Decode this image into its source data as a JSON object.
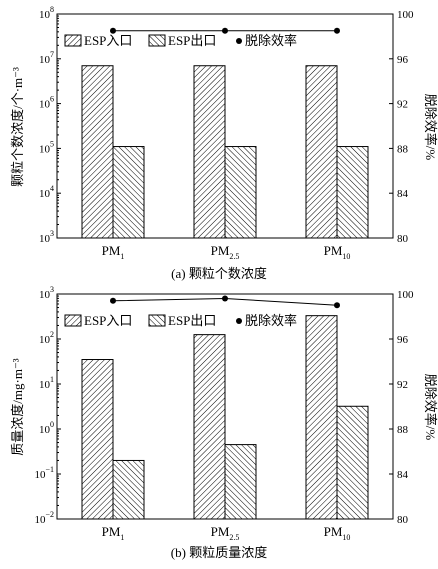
{
  "chart_data": [
    {
      "type": "bar",
      "caption": "(a) 颗粒个数浓度",
      "ylabel_left": "颗粒个数浓度/个·m⁻³",
      "ylabel_right": "脱除效率/%",
      "yscale_left": "log",
      "ylim_left_exp": [
        3,
        8
      ],
      "ylim_right": [
        80,
        100
      ],
      "yticks_right": [
        80,
        84,
        88,
        92,
        96,
        100
      ],
      "categories": [
        {
          "base": "PM",
          "sub": "1"
        },
        {
          "base": "PM",
          "sub": "2.5"
        },
        {
          "base": "PM",
          "sub": "10"
        }
      ],
      "series": [
        {
          "name": "ESP入口",
          "kind": "bar",
          "axis": "left",
          "values": [
            7000000.0,
            7000000.0,
            7000000.0
          ]
        },
        {
          "name": "ESP出口",
          "kind": "bar",
          "axis": "left",
          "values": [
            110000.0,
            110000.0,
            110000.0
          ]
        },
        {
          "name": "脱除效率",
          "kind": "line",
          "axis": "right",
          "values": [
            98.5,
            98.5,
            98.5
          ]
        }
      ],
      "legend_position": "top-left",
      "grid": false
    },
    {
      "type": "bar",
      "caption": "(b) 颗粒质量浓度",
      "ylabel_left": "质量浓度/mg·m⁻³",
      "ylabel_right": "脱除效率/%",
      "yscale_left": "log",
      "ylim_left_exp": [
        -2,
        3
      ],
      "ylim_right": [
        80,
        100
      ],
      "yticks_right": [
        80,
        84,
        88,
        92,
        96,
        100
      ],
      "categories": [
        {
          "base": "PM",
          "sub": "1"
        },
        {
          "base": "PM",
          "sub": "2.5"
        },
        {
          "base": "PM",
          "sub": "10"
        }
      ],
      "series": [
        {
          "name": "ESP入口",
          "kind": "bar",
          "axis": "left",
          "values": [
            35,
            125,
            330
          ]
        },
        {
          "name": "ESP出口",
          "kind": "bar",
          "axis": "left",
          "values": [
            0.2,
            0.45,
            3.2
          ]
        },
        {
          "name": "脱除效率",
          "kind": "line",
          "axis": "right",
          "values": [
            99.4,
            99.6,
            99.0
          ]
        }
      ],
      "legend_position": "top-left",
      "grid": false
    }
  ]
}
